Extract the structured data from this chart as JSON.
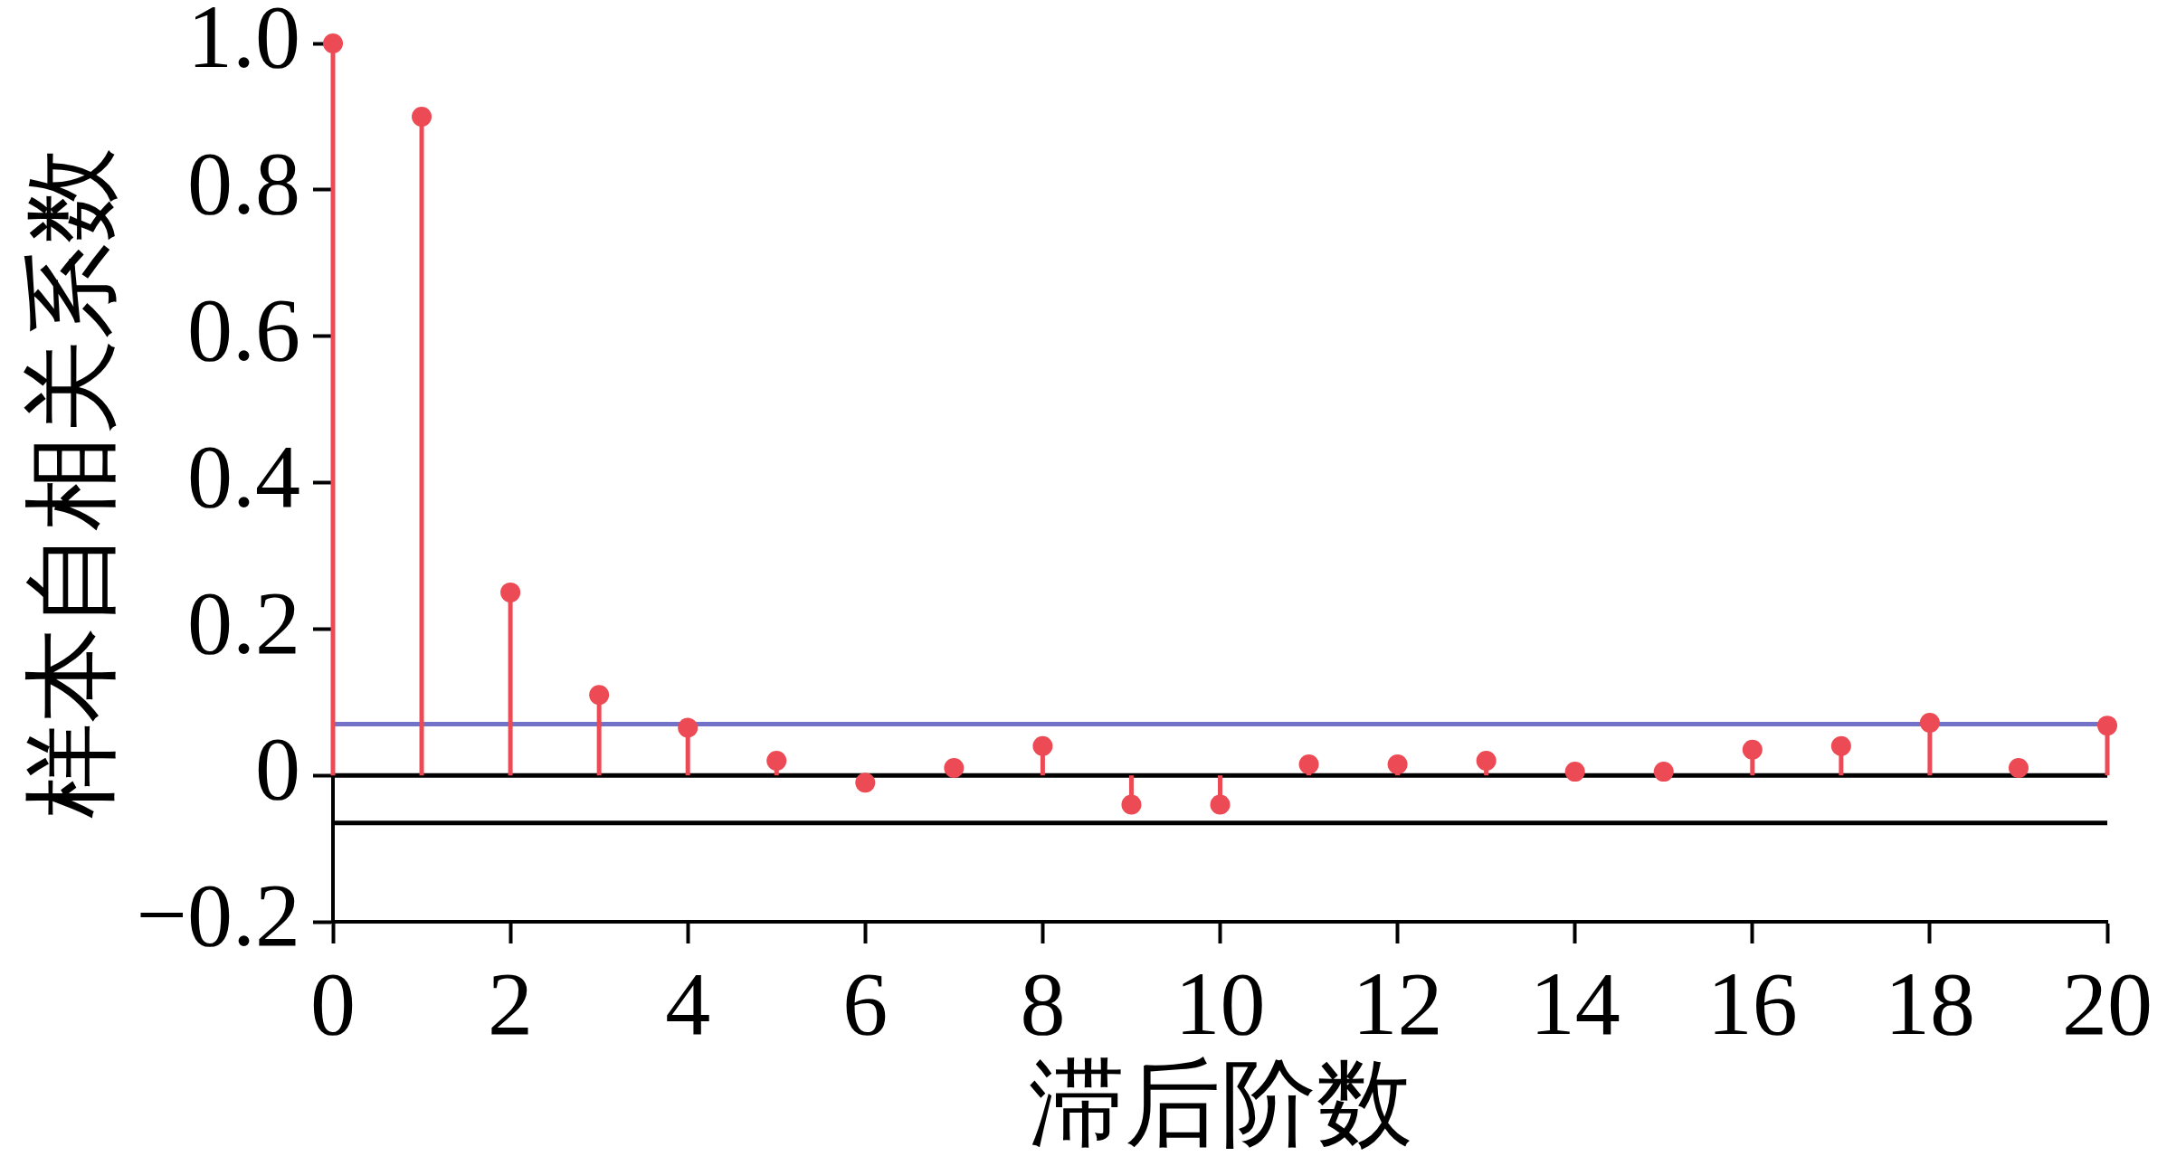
{
  "chart_data": {
    "type": "lollipop",
    "xlabel": "滞后阶数",
    "ylabel": "样本自相关系数",
    "x": [
      0,
      1,
      2,
      3,
      4,
      5,
      6,
      7,
      8,
      9,
      10,
      11,
      12,
      13,
      14,
      15,
      16,
      17,
      18,
      19,
      20
    ],
    "values": [
      1.0,
      0.9,
      0.25,
      0.11,
      0.065,
      0.02,
      -0.01,
      0.01,
      0.04,
      -0.04,
      -0.04,
      0.015,
      0.015,
      0.02,
      0.005,
      0.005,
      0.035,
      0.04,
      0.072,
      0.01,
      0.068
    ],
    "color": "#ec4a55",
    "marker": "circle",
    "xlim": [
      0,
      20
    ],
    "xticks": [
      0,
      2,
      4,
      6,
      8,
      10,
      12,
      14,
      16,
      18,
      20
    ],
    "ylim": [
      -0.2,
      1
    ],
    "yticks": [
      {
        "value": -0.2,
        "label": "−0.2"
      },
      0,
      0.2,
      0.4,
      0.6,
      0.8,
      {
        "value": 1,
        "label": "1.0"
      }
    ],
    "ref_lines": [
      {
        "axis": "y",
        "value": 0,
        "color": "#000000"
      },
      {
        "axis": "y",
        "value": 0.07,
        "color": "#7272c8"
      },
      {
        "axis": "y",
        "value": -0.065,
        "color": "#000000"
      }
    ]
  }
}
